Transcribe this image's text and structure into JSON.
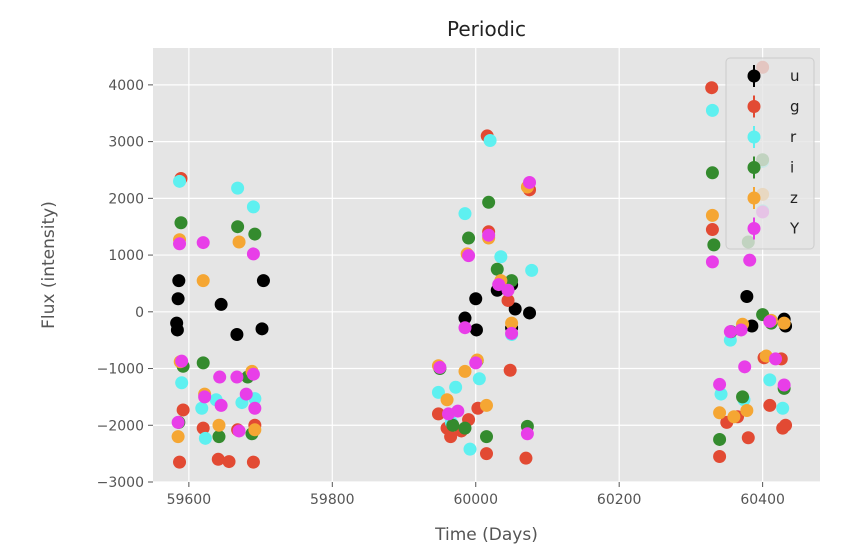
{
  "chart_data": {
    "type": "scatter",
    "title": "Periodic",
    "xlabel": "Time (Days)",
    "ylabel": "Flux (intensity)",
    "xlim": [
      59550,
      60480
    ],
    "ylim": [
      -3000,
      4650
    ],
    "xticks": [
      59600,
      59800,
      60000,
      60200,
      60400
    ],
    "yticks": [
      -3000,
      -2000,
      -1000,
      0,
      1000,
      2000,
      3000,
      4000
    ],
    "xtick_labels": [
      "59600",
      "59800",
      "60000",
      "60200",
      "60400"
    ],
    "ytick_labels": [
      "−3000",
      "−2000",
      "−1000",
      "0",
      "1000",
      "2000",
      "3000",
      "4000"
    ],
    "grid": true,
    "legend": "top-right",
    "series": [
      {
        "name": "u",
        "color": "#000000",
        "points": [
          [
            59583,
            -200
          ],
          [
            59584,
            -320
          ],
          [
            59585,
            230
          ],
          [
            59586,
            550
          ],
          [
            59645,
            130
          ],
          [
            59667,
            -400
          ],
          [
            59702,
            -300
          ],
          [
            59704,
            550
          ],
          [
            59985,
            -110
          ],
          [
            60000,
            230
          ],
          [
            60001,
            -320
          ],
          [
            60030,
            380
          ],
          [
            60050,
            480
          ],
          [
            60050,
            -280
          ],
          [
            60055,
            50
          ],
          [
            60075,
            -20
          ],
          [
            60378,
            270
          ],
          [
            60385,
            -250
          ],
          [
            60430,
            -130
          ],
          [
            60432,
            -250
          ]
        ]
      },
      {
        "name": "g",
        "color": "#e24a33",
        "points": [
          [
            59587,
            -2650
          ],
          [
            59589,
            2350
          ],
          [
            59592,
            -1730
          ],
          [
            59620,
            -2050
          ],
          [
            59641,
            -2600
          ],
          [
            59656,
            -2640
          ],
          [
            59668,
            -2080
          ],
          [
            59690,
            -2650
          ],
          [
            59692,
            -2000
          ],
          [
            59948,
            -1800
          ],
          [
            59960,
            -2050
          ],
          [
            59965,
            -2200
          ],
          [
            59980,
            -2100
          ],
          [
            59990,
            -1900
          ],
          [
            60003,
            -1700
          ],
          [
            60015,
            -2500
          ],
          [
            60016,
            3100
          ],
          [
            60018,
            1410
          ],
          [
            60045,
            200
          ],
          [
            60048,
            -1030
          ],
          [
            60070,
            -2580
          ],
          [
            60075,
            2150
          ],
          [
            60329,
            3950
          ],
          [
            60330,
            1450
          ],
          [
            60340,
            -2550
          ],
          [
            60350,
            -1950
          ],
          [
            60365,
            -1850
          ],
          [
            60380,
            -2220
          ],
          [
            60402,
            -810
          ],
          [
            60410,
            -1650
          ],
          [
            60426,
            -830
          ],
          [
            60428,
            -2050
          ],
          [
            60432,
            -2000
          ],
          [
            60400,
            4310
          ]
        ]
      },
      {
        "name": "r",
        "color": "#5ef0f0",
        "points": [
          [
            59587,
            2300
          ],
          [
            59590,
            -1250
          ],
          [
            59618,
            -1700
          ],
          [
            59623,
            -2230
          ],
          [
            59638,
            -1550
          ],
          [
            59668,
            2180
          ],
          [
            59674,
            -1600
          ],
          [
            59690,
            1850
          ],
          [
            59692,
            -1530
          ],
          [
            59948,
            -1420
          ],
          [
            59966,
            -1950
          ],
          [
            59972,
            -1330
          ],
          [
            59985,
            1730
          ],
          [
            59992,
            -2420
          ],
          [
            60005,
            -1180
          ],
          [
            60020,
            3020
          ],
          [
            60035,
            970
          ],
          [
            60050,
            -400
          ],
          [
            60078,
            730
          ],
          [
            60330,
            3550
          ],
          [
            60342,
            -1450
          ],
          [
            60355,
            -500
          ],
          [
            60374,
            -1550
          ],
          [
            60410,
            -1200
          ],
          [
            60428,
            -1700
          ],
          [
            60400,
            2650
          ],
          [
            60400,
            1780
          ]
        ]
      },
      {
        "name": "i",
        "color": "#348b2e",
        "points": [
          [
            59586,
            -1950
          ],
          [
            59589,
            1570
          ],
          [
            59592,
            -960
          ],
          [
            59620,
            -900
          ],
          [
            59642,
            -2200
          ],
          [
            59668,
            1500
          ],
          [
            59682,
            -1150
          ],
          [
            59688,
            -2150
          ],
          [
            59692,
            1370
          ],
          [
            59950,
            -1000
          ],
          [
            59968,
            -2000
          ],
          [
            59985,
            -2050
          ],
          [
            59990,
            1300
          ],
          [
            60002,
            -860
          ],
          [
            60015,
            -2200
          ],
          [
            60018,
            1930
          ],
          [
            60030,
            750
          ],
          [
            60050,
            550
          ],
          [
            60072,
            -2020
          ],
          [
            60330,
            2450
          ],
          [
            60332,
            1180
          ],
          [
            60340,
            -2250
          ],
          [
            60356,
            -350
          ],
          [
            60372,
            -1500
          ],
          [
            60380,
            1230
          ],
          [
            60400,
            -50
          ],
          [
            60412,
            -200
          ],
          [
            60430,
            -1350
          ],
          [
            60400,
            2680
          ]
        ]
      },
      {
        "name": "z",
        "color": "#f5a633",
        "points": [
          [
            59585,
            -2200
          ],
          [
            59587,
            1270
          ],
          [
            59588,
            -880
          ],
          [
            59620,
            550
          ],
          [
            59622,
            -1450
          ],
          [
            59642,
            -2000
          ],
          [
            59670,
            1230
          ],
          [
            59688,
            -1050
          ],
          [
            59692,
            -2080
          ],
          [
            59948,
            -950
          ],
          [
            59960,
            -1550
          ],
          [
            59985,
            -1050
          ],
          [
            59988,
            1020
          ],
          [
            60002,
            -850
          ],
          [
            60015,
            -1650
          ],
          [
            60018,
            1300
          ],
          [
            60035,
            550
          ],
          [
            60050,
            -200
          ],
          [
            60072,
            2200
          ],
          [
            60330,
            1700
          ],
          [
            60340,
            -1780
          ],
          [
            60360,
            -1850
          ],
          [
            60372,
            -220
          ],
          [
            60378,
            -1740
          ],
          [
            60405,
            -780
          ],
          [
            60412,
            -150
          ],
          [
            60430,
            -200
          ],
          [
            60400,
            2070
          ]
        ]
      },
      {
        "name": "Y",
        "color": "#e83ee8",
        "points": [
          [
            59585,
            -1950
          ],
          [
            59587,
            1200
          ],
          [
            59590,
            -870
          ],
          [
            59620,
            1220
          ],
          [
            59622,
            -1500
          ],
          [
            59643,
            -1150
          ],
          [
            59645,
            -1650
          ],
          [
            59667,
            -1150
          ],
          [
            59670,
            -2100
          ],
          [
            59680,
            -1450
          ],
          [
            59690,
            1020
          ],
          [
            59692,
            -1700
          ],
          [
            59690,
            -1100
          ],
          [
            59950,
            -980
          ],
          [
            59962,
            -1800
          ],
          [
            59975,
            -1750
          ],
          [
            59985,
            -280
          ],
          [
            59990,
            990
          ],
          [
            60000,
            -900
          ],
          [
            60018,
            1350
          ],
          [
            60032,
            480
          ],
          [
            60045,
            380
          ],
          [
            60050,
            -380
          ],
          [
            60072,
            -2150
          ],
          [
            60075,
            2280
          ],
          [
            60330,
            880
          ],
          [
            60340,
            -1280
          ],
          [
            60355,
            -350
          ],
          [
            60370,
            -320
          ],
          [
            60375,
            -970
          ],
          [
            60382,
            910
          ],
          [
            60410,
            -170
          ],
          [
            60418,
            -830
          ],
          [
            60430,
            -1290
          ],
          [
            60400,
            1760
          ]
        ]
      }
    ]
  }
}
